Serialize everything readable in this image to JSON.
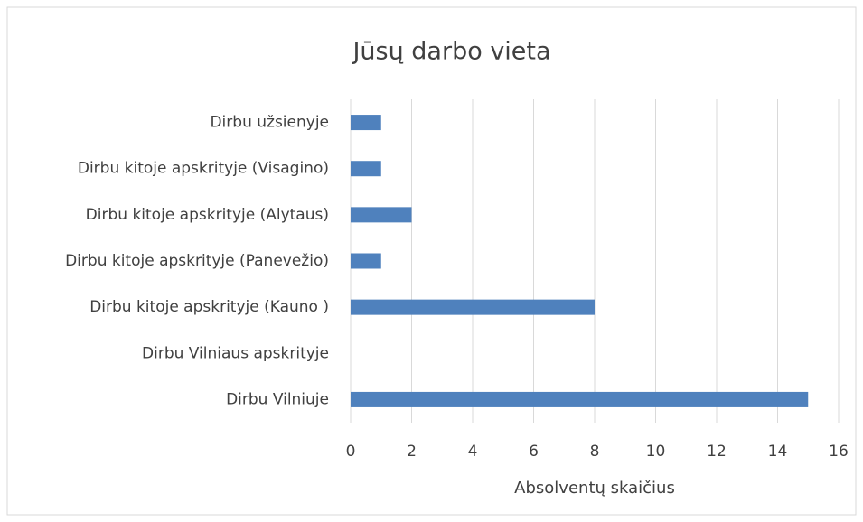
{
  "chart_data": {
    "type": "barh",
    "title": "Jūsų darbo vieta",
    "x_label": "Absolventų skaičius",
    "categories": [
      "Dirbu užsienyje",
      "Dirbu kitoje apskrityje (Visagino)",
      "Dirbu kitoje apskrityje (Alytaus)",
      "Dirbu kitoje apskrityje (Panevežio)",
      "Dirbu kitoje apskrityje (Kauno )",
      "Dirbu Vilniaus apskrityje",
      "Dirbu Vilniuje"
    ],
    "values": [
      1,
      1,
      2,
      1,
      8,
      0,
      15
    ],
    "color": "#4f81bd",
    "xlim": [
      0,
      16
    ],
    "xticks": [
      0,
      2,
      4,
      6,
      8,
      10,
      12,
      14,
      16
    ],
    "grid": true
  }
}
